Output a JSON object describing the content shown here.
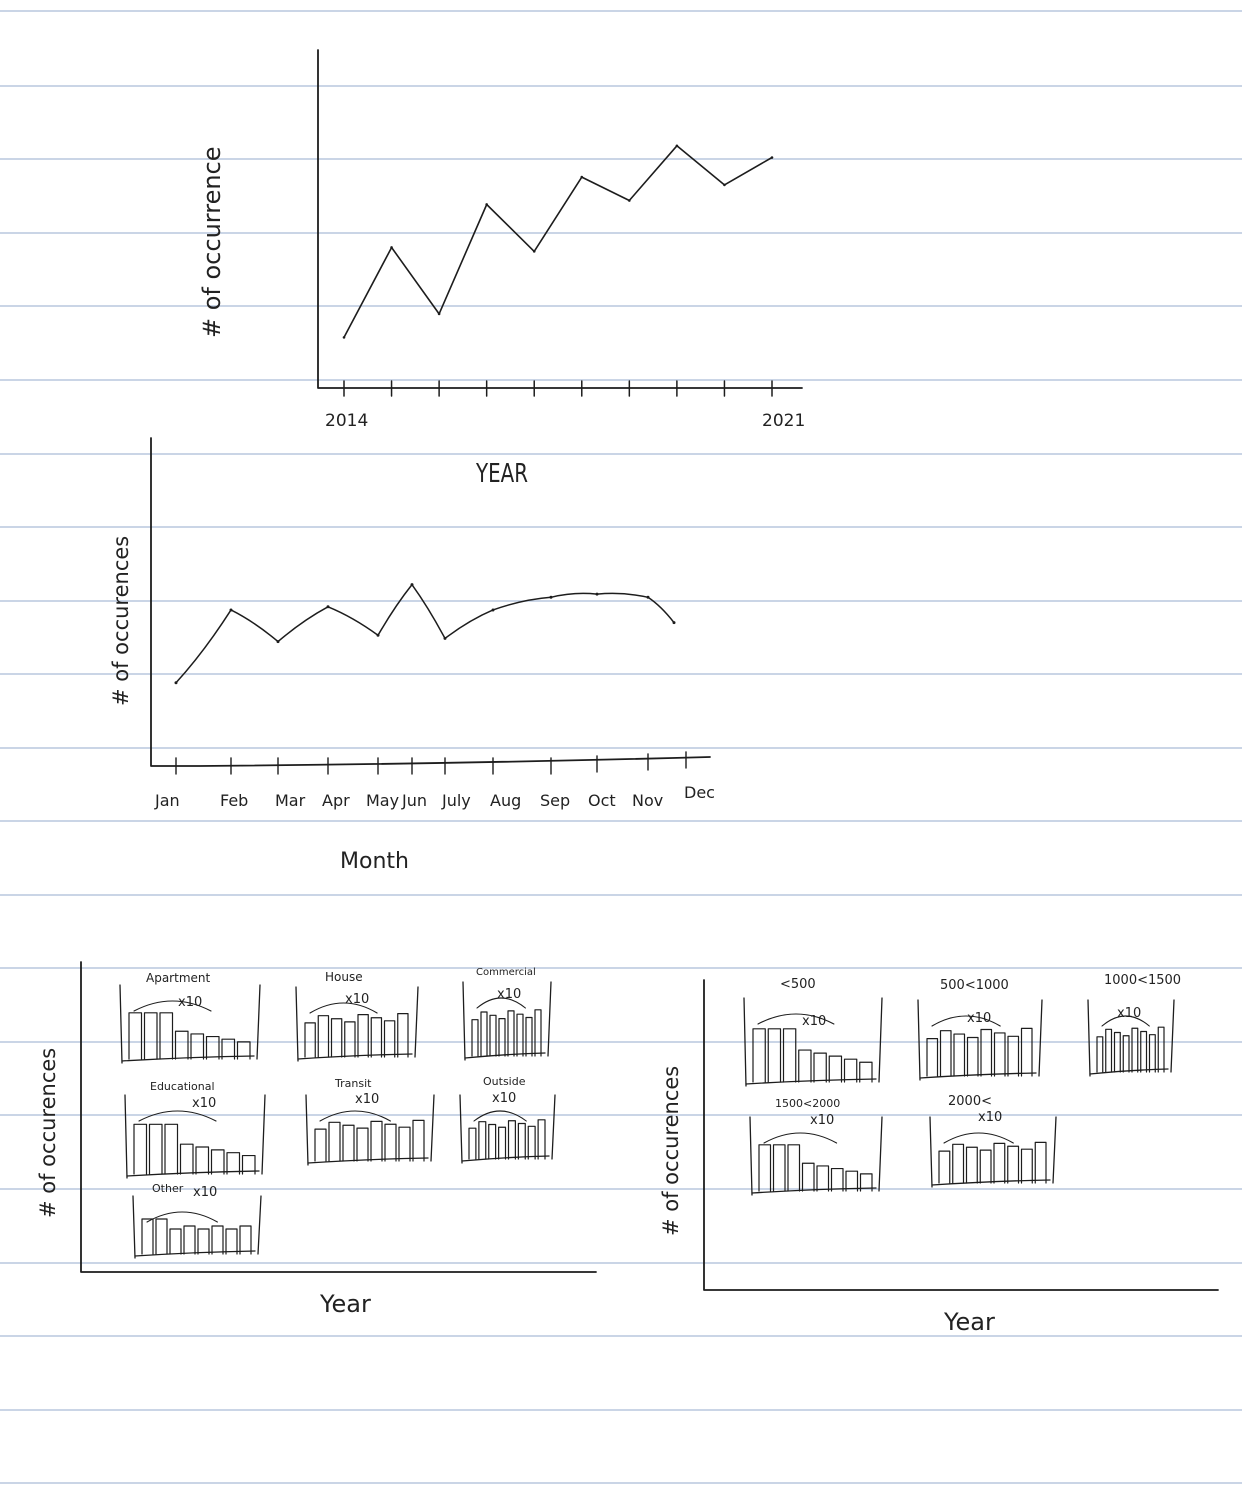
{
  "chart_data": [
    {
      "type": "line",
      "title": "",
      "xlabel": "YEAR",
      "ylabel": "# of occurrence",
      "x_tick_labels": [
        "2014",
        "2021"
      ],
      "x": [
        0,
        1,
        2,
        3,
        4,
        5,
        6,
        7,
        8,
        9
      ],
      "values": [
        1.0,
        3.3,
        1.6,
        4.4,
        3.2,
        5.1,
        4.5,
        5.9,
        4.9,
        5.6
      ]
    },
    {
      "type": "line",
      "title": "",
      "xlabel": "Month",
      "ylabel": "# of occurences",
      "categories": [
        "Jan",
        "Feb",
        "Mar",
        "Apr",
        "May",
        "Jun",
        "July",
        "Aug",
        "Sep",
        "Oct",
        "Nov",
        "Dec"
      ],
      "values": [
        2.0,
        4.3,
        3.3,
        4.4,
        3.5,
        5.1,
        3.4,
        4.3,
        4.7,
        4.8,
        4.7,
        3.9
      ]
    },
    {
      "type": "bar",
      "title": "",
      "xlabel": "Year",
      "ylabel": "# of occurences",
      "panels": [
        {
          "label": "Apartment",
          "note": "x10"
        },
        {
          "label": "House",
          "note": "x10"
        },
        {
          "label": "Commercial",
          "note": "x10"
        },
        {
          "label": "Educational",
          "note": "x10"
        },
        {
          "label": "Transit",
          "note": "x10"
        },
        {
          "label": "Outside",
          "note": "x10"
        },
        {
          "label": "Other",
          "note": "x10"
        }
      ]
    },
    {
      "type": "bar",
      "title": "",
      "xlabel": "Year",
      "ylabel": "# of occurences",
      "panels": [
        {
          "label": "<500",
          "note": "x10"
        },
        {
          "label": "500<1000",
          "note": "x10"
        },
        {
          "label": "1000<1500",
          "note": "x10"
        },
        {
          "label": "1500<2000",
          "note": "x10"
        },
        {
          "label": "2000<",
          "note": "x10"
        }
      ]
    }
  ]
}
